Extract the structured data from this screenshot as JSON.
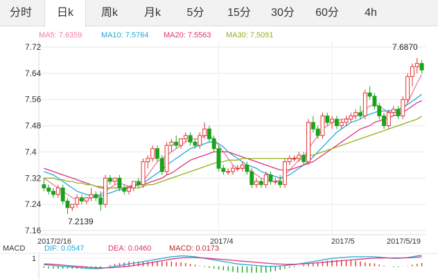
{
  "tabs": [
    {
      "label": "分时",
      "active": false
    },
    {
      "label": "日k",
      "active": true
    },
    {
      "label": "周k",
      "active": false
    },
    {
      "label": "月k",
      "active": false
    },
    {
      "label": "5分",
      "active": false
    },
    {
      "label": "15分",
      "active": false
    },
    {
      "label": "30分",
      "active": false
    },
    {
      "label": "60分",
      "active": false
    },
    {
      "label": "4h",
      "active": false
    }
  ],
  "ma_legend": [
    {
      "label": "MA5: 7.6359",
      "color": "#f07aa0"
    },
    {
      "label": "MA10: 7.5764",
      "color": "#20a8d8"
    },
    {
      "label": "MA20: 7.5563",
      "color": "#e0307a"
    },
    {
      "label": "MA30: 7.5091",
      "color": "#8fb31a"
    }
  ],
  "macd_legend": {
    "title": "MACD",
    "items": [
      {
        "label": "DIF: 0.0547",
        "color": "#20a8d8"
      },
      {
        "label": "DEA: 0.0460",
        "color": "#e0307a"
      },
      {
        "label": "MACD: 0.0173",
        "color": "#c0282d"
      }
    ]
  },
  "chart_data": [
    {
      "type": "candlestick",
      "y_ticks": [
        "7.72",
        "7.64",
        "7.56",
        "7.48",
        "7.4",
        "7.32",
        "7.24",
        "7.16"
      ],
      "ylim": [
        7.16,
        7.72
      ],
      "x_labels": [
        "2017/2/16",
        "2017/4",
        "2017/5",
        "2017/5/19"
      ],
      "annotations": {
        "high": "7.6870",
        "low": "7.2139"
      },
      "candles": [
        [
          7.3,
          7.32,
          7.28,
          7.29
        ],
        [
          7.29,
          7.3,
          7.27,
          7.28
        ],
        [
          7.28,
          7.29,
          7.26,
          7.27
        ],
        [
          7.27,
          7.3,
          7.26,
          7.29
        ],
        [
          7.29,
          7.3,
          7.24,
          7.25
        ],
        [
          7.25,
          7.26,
          7.21,
          7.23
        ],
        [
          7.23,
          7.24,
          7.22,
          7.24
        ],
        [
          7.24,
          7.27,
          7.23,
          7.26
        ],
        [
          7.26,
          7.27,
          7.24,
          7.25
        ],
        [
          7.25,
          7.26,
          7.24,
          7.26
        ],
        [
          7.26,
          7.29,
          7.25,
          7.27
        ],
        [
          7.27,
          7.28,
          7.25,
          7.26
        ],
        [
          7.26,
          7.28,
          7.22,
          7.24
        ],
        [
          7.24,
          7.33,
          7.23,
          7.32
        ],
        [
          7.32,
          7.33,
          7.3,
          7.31
        ],
        [
          7.31,
          7.32,
          7.3,
          7.32
        ],
        [
          7.32,
          7.33,
          7.28,
          7.29
        ],
        [
          7.29,
          7.3,
          7.27,
          7.28
        ],
        [
          7.28,
          7.29,
          7.27,
          7.29
        ],
        [
          7.29,
          7.31,
          7.28,
          7.31
        ],
        [
          7.31,
          7.32,
          7.29,
          7.3
        ],
        [
          7.3,
          7.38,
          7.29,
          7.37
        ],
        [
          7.37,
          7.39,
          7.35,
          7.38
        ],
        [
          7.38,
          7.42,
          7.37,
          7.41
        ],
        [
          7.41,
          7.42,
          7.37,
          7.38
        ],
        [
          7.38,
          7.39,
          7.33,
          7.34
        ],
        [
          7.34,
          7.43,
          7.33,
          7.42
        ],
        [
          7.42,
          7.44,
          7.4,
          7.43
        ],
        [
          7.43,
          7.45,
          7.41,
          7.42
        ],
        [
          7.42,
          7.44,
          7.41,
          7.44
        ],
        [
          7.44,
          7.46,
          7.43,
          7.45
        ],
        [
          7.45,
          7.46,
          7.42,
          7.43
        ],
        [
          7.43,
          7.44,
          7.41,
          7.42
        ],
        [
          7.42,
          7.46,
          7.41,
          7.45
        ],
        [
          7.45,
          7.49,
          7.44,
          7.47
        ],
        [
          7.47,
          7.48,
          7.43,
          7.44
        ],
        [
          7.44,
          7.45,
          7.4,
          7.41
        ],
        [
          7.41,
          7.42,
          7.34,
          7.35
        ],
        [
          7.35,
          7.36,
          7.33,
          7.34
        ],
        [
          7.34,
          7.35,
          7.33,
          7.34
        ],
        [
          7.34,
          7.36,
          7.33,
          7.35
        ],
        [
          7.35,
          7.36,
          7.34,
          7.35
        ],
        [
          7.35,
          7.37,
          7.34,
          7.36
        ],
        [
          7.36,
          7.37,
          7.33,
          7.34
        ],
        [
          7.34,
          7.35,
          7.29,
          7.3
        ],
        [
          7.3,
          7.32,
          7.29,
          7.31
        ],
        [
          7.31,
          7.32,
          7.29,
          7.3
        ],
        [
          7.3,
          7.34,
          7.29,
          7.33
        ],
        [
          7.33,
          7.34,
          7.3,
          7.31
        ],
        [
          7.31,
          7.32,
          7.3,
          7.31
        ],
        [
          7.31,
          7.33,
          7.29,
          7.3
        ],
        [
          7.3,
          7.38,
          7.29,
          7.37
        ],
        [
          7.37,
          7.39,
          7.36,
          7.38
        ],
        [
          7.38,
          7.39,
          7.37,
          7.38
        ],
        [
          7.38,
          7.4,
          7.37,
          7.39
        ],
        [
          7.39,
          7.4,
          7.36,
          7.37
        ],
        [
          7.37,
          7.5,
          7.36,
          7.49
        ],
        [
          7.49,
          7.51,
          7.46,
          7.47
        ],
        [
          7.47,
          7.48,
          7.44,
          7.45
        ],
        [
          7.45,
          7.52,
          7.44,
          7.51
        ],
        [
          7.51,
          7.52,
          7.48,
          7.49
        ],
        [
          7.49,
          7.51,
          7.47,
          7.5
        ],
        [
          7.5,
          7.51,
          7.47,
          7.48
        ],
        [
          7.48,
          7.5,
          7.47,
          7.49
        ],
        [
          7.49,
          7.51,
          7.48,
          7.5
        ],
        [
          7.5,
          7.52,
          7.49,
          7.51
        ],
        [
          7.51,
          7.53,
          7.5,
          7.52
        ],
        [
          7.52,
          7.54,
          7.5,
          7.51
        ],
        [
          7.51,
          7.59,
          7.5,
          7.58
        ],
        [
          7.58,
          7.6,
          7.56,
          7.57
        ],
        [
          7.57,
          7.58,
          7.53,
          7.54
        ],
        [
          7.54,
          7.55,
          7.5,
          7.51
        ],
        [
          7.51,
          7.52,
          7.47,
          7.48
        ],
        [
          7.48,
          7.53,
          7.47,
          7.52
        ],
        [
          7.52,
          7.54,
          7.51,
          7.53
        ],
        [
          7.53,
          7.54,
          7.5,
          7.51
        ],
        [
          7.51,
          7.57,
          7.5,
          7.56
        ],
        [
          7.56,
          7.64,
          7.55,
          7.63
        ],
        [
          7.63,
          7.67,
          7.6,
          7.66
        ],
        [
          7.66,
          7.687,
          7.64,
          7.67
        ],
        [
          7.67,
          7.68,
          7.64,
          7.65
        ]
      ],
      "series": [
        {
          "name": "MA5",
          "values": [
            7.32,
            7.31,
            7.3,
            7.29,
            7.28,
            7.27,
            7.26,
            7.255,
            7.255,
            7.255,
            7.26,
            7.265,
            7.27,
            7.28,
            7.29,
            7.3,
            7.305,
            7.3,
            7.295,
            7.3,
            7.3,
            7.31,
            7.33,
            7.35,
            7.37,
            7.38,
            7.39,
            7.4,
            7.41,
            7.42,
            7.43,
            7.44,
            7.44,
            7.44,
            7.45,
            7.45,
            7.44,
            7.42,
            7.4,
            7.38,
            7.36,
            7.35,
            7.35,
            7.35,
            7.34,
            7.33,
            7.32,
            7.315,
            7.31,
            7.31,
            7.315,
            7.33,
            7.345,
            7.36,
            7.375,
            7.38,
            7.41,
            7.43,
            7.45,
            7.47,
            7.48,
            7.49,
            7.495,
            7.5,
            7.5,
            7.505,
            7.51,
            7.52,
            7.53,
            7.54,
            7.545,
            7.54,
            7.53,
            7.52,
            7.52,
            7.52,
            7.53,
            7.55,
            7.58,
            7.61,
            7.636
          ]
        },
        {
          "name": "MA10",
          "values": [
            7.34,
            7.335,
            7.33,
            7.32,
            7.31,
            7.3,
            7.29,
            7.28,
            7.275,
            7.27,
            7.265,
            7.265,
            7.265,
            7.27,
            7.275,
            7.28,
            7.285,
            7.285,
            7.29,
            7.295,
            7.3,
            7.305,
            7.315,
            7.325,
            7.335,
            7.345,
            7.36,
            7.37,
            7.38,
            7.39,
            7.4,
            7.41,
            7.415,
            7.42,
            7.425,
            7.43,
            7.43,
            7.425,
            7.415,
            7.4,
            7.39,
            7.38,
            7.37,
            7.36,
            7.355,
            7.35,
            7.34,
            7.335,
            7.33,
            7.325,
            7.32,
            7.325,
            7.33,
            7.34,
            7.35,
            7.36,
            7.37,
            7.385,
            7.4,
            7.415,
            7.43,
            7.445,
            7.46,
            7.47,
            7.48,
            7.49,
            7.495,
            7.5,
            7.51,
            7.515,
            7.52,
            7.525,
            7.525,
            7.525,
            7.525,
            7.53,
            7.535,
            7.545,
            7.555,
            7.565,
            7.576
          ]
        },
        {
          "name": "MA20",
          "values": [
            7.35,
            7.345,
            7.34,
            7.335,
            7.33,
            7.325,
            7.32,
            7.315,
            7.31,
            7.305,
            7.3,
            7.295,
            7.29,
            7.29,
            7.29,
            7.29,
            7.29,
            7.29,
            7.295,
            7.295,
            7.3,
            7.3,
            7.305,
            7.31,
            7.315,
            7.32,
            7.33,
            7.335,
            7.345,
            7.355,
            7.365,
            7.375,
            7.38,
            7.385,
            7.39,
            7.395,
            7.4,
            7.4,
            7.4,
            7.4,
            7.395,
            7.39,
            7.385,
            7.38,
            7.375,
            7.37,
            7.365,
            7.36,
            7.355,
            7.35,
            7.345,
            7.345,
            7.345,
            7.35,
            7.355,
            7.36,
            7.365,
            7.37,
            7.38,
            7.39,
            7.4,
            7.41,
            7.42,
            7.43,
            7.44,
            7.45,
            7.46,
            7.47,
            7.475,
            7.48,
            7.49,
            7.495,
            7.5,
            7.505,
            7.51,
            7.515,
            7.52,
            7.53,
            7.54,
            7.55,
            7.556
          ]
        },
        {
          "name": "MA30",
          "values": [
            7.32,
            7.32,
            7.32,
            7.315,
            7.315,
            7.31,
            7.31,
            7.305,
            7.305,
            7.3,
            7.3,
            7.295,
            7.295,
            7.29,
            7.29,
            7.29,
            7.29,
            7.29,
            7.29,
            7.29,
            7.29,
            7.295,
            7.3,
            7.3,
            7.305,
            7.31,
            7.315,
            7.32,
            7.325,
            7.33,
            7.335,
            7.34,
            7.345,
            7.35,
            7.355,
            7.36,
            7.365,
            7.37,
            7.37,
            7.375,
            7.375,
            7.375,
            7.38,
            7.38,
            7.38,
            7.38,
            7.38,
            7.38,
            7.38,
            7.38,
            7.38,
            7.38,
            7.38,
            7.38,
            7.385,
            7.385,
            7.39,
            7.39,
            7.395,
            7.4,
            7.405,
            7.41,
            7.415,
            7.42,
            7.425,
            7.43,
            7.435,
            7.44,
            7.445,
            7.45,
            7.455,
            7.46,
            7.465,
            7.47,
            7.475,
            7.48,
            7.485,
            7.49,
            7.495,
            7.5,
            7.509
          ]
        }
      ]
    },
    {
      "type": "macd",
      "y_ticks": [
        "1"
      ],
      "dif_series": [
        0.2,
        0.15,
        0.1,
        0.05,
        0.0,
        -0.05,
        -0.1,
        -0.15,
        -0.2,
        -0.25,
        -0.3,
        -0.3,
        -0.28,
        -0.2,
        -0.1,
        0.0,
        0.1,
        0.2,
        0.3,
        0.4,
        0.5,
        0.6,
        0.7,
        0.8,
        0.9,
        1.0,
        1.1,
        1.2,
        1.25,
        1.3,
        1.3,
        1.25,
        1.2,
        1.1,
        1.0,
        0.9,
        0.8,
        0.7,
        0.6,
        0.5,
        0.4,
        0.3,
        0.25,
        0.2,
        0.15,
        0.1,
        0.05,
        0.0,
        0.0,
        0.0,
        0.05,
        0.1,
        0.15,
        0.2,
        0.3,
        0.4,
        0.5,
        0.6,
        0.7,
        0.8,
        0.9,
        1.0,
        1.05,
        1.1,
        1.15,
        1.2,
        1.2,
        1.2,
        1.2,
        1.2,
        1.2,
        1.15,
        1.1,
        1.05,
        1.0,
        1.0,
        1.05,
        1.1,
        1.2,
        1.3,
        1.4
      ],
      "dea_series": [
        0.3,
        0.28,
        0.25,
        0.2,
        0.15,
        0.1,
        0.05,
        0.0,
        -0.05,
        -0.1,
        -0.15,
        -0.18,
        -0.2,
        -0.2,
        -0.18,
        -0.15,
        -0.1,
        -0.05,
        0.0,
        0.1,
        0.2,
        0.3,
        0.4,
        0.5,
        0.6,
        0.7,
        0.8,
        0.9,
        1.0,
        1.05,
        1.1,
        1.1,
        1.1,
        1.08,
        1.05,
        1.0,
        0.95,
        0.9,
        0.85,
        0.8,
        0.75,
        0.7,
        0.65,
        0.6,
        0.55,
        0.5,
        0.45,
        0.4,
        0.35,
        0.3,
        0.28,
        0.26,
        0.25,
        0.26,
        0.28,
        0.3,
        0.35,
        0.4,
        0.45,
        0.5,
        0.55,
        0.6,
        0.65,
        0.7,
        0.75,
        0.8,
        0.85,
        0.9,
        0.95,
        1.0,
        1.02,
        1.04,
        1.05,
        1.05,
        1.05,
        1.05,
        1.06,
        1.08,
        1.1,
        1.15,
        1.2
      ],
      "histogram": [
        -0.2,
        -0.25,
        -0.3,
        -0.3,
        -0.3,
        -0.3,
        -0.3,
        -0.3,
        -0.3,
        -0.3,
        -0.3,
        -0.25,
        -0.16,
        0.0,
        0.16,
        0.3,
        0.4,
        0.5,
        0.6,
        0.6,
        0.6,
        0.6,
        0.6,
        0.6,
        0.6,
        0.6,
        0.6,
        0.6,
        0.5,
        0.5,
        0.4,
        0.3,
        0.2,
        0.04,
        -0.1,
        -0.2,
        -0.3,
        -0.4,
        -0.5,
        -0.6,
        -0.7,
        -0.8,
        -0.8,
        -0.8,
        -0.8,
        -0.8,
        -0.8,
        -0.8,
        -0.7,
        -0.6,
        -0.46,
        -0.32,
        -0.2,
        -0.12,
        0.04,
        0.2,
        0.3,
        0.4,
        0.5,
        0.6,
        0.7,
        0.8,
        0.8,
        0.8,
        0.8,
        0.8,
        0.7,
        0.6,
        0.5,
        0.4,
        0.36,
        0.22,
        0.1,
        0.0,
        -0.1,
        -0.1,
        -0.02,
        0.04,
        0.2,
        0.3,
        0.4
      ],
      "ylim": [
        -1.6,
        1.8
      ]
    }
  ]
}
